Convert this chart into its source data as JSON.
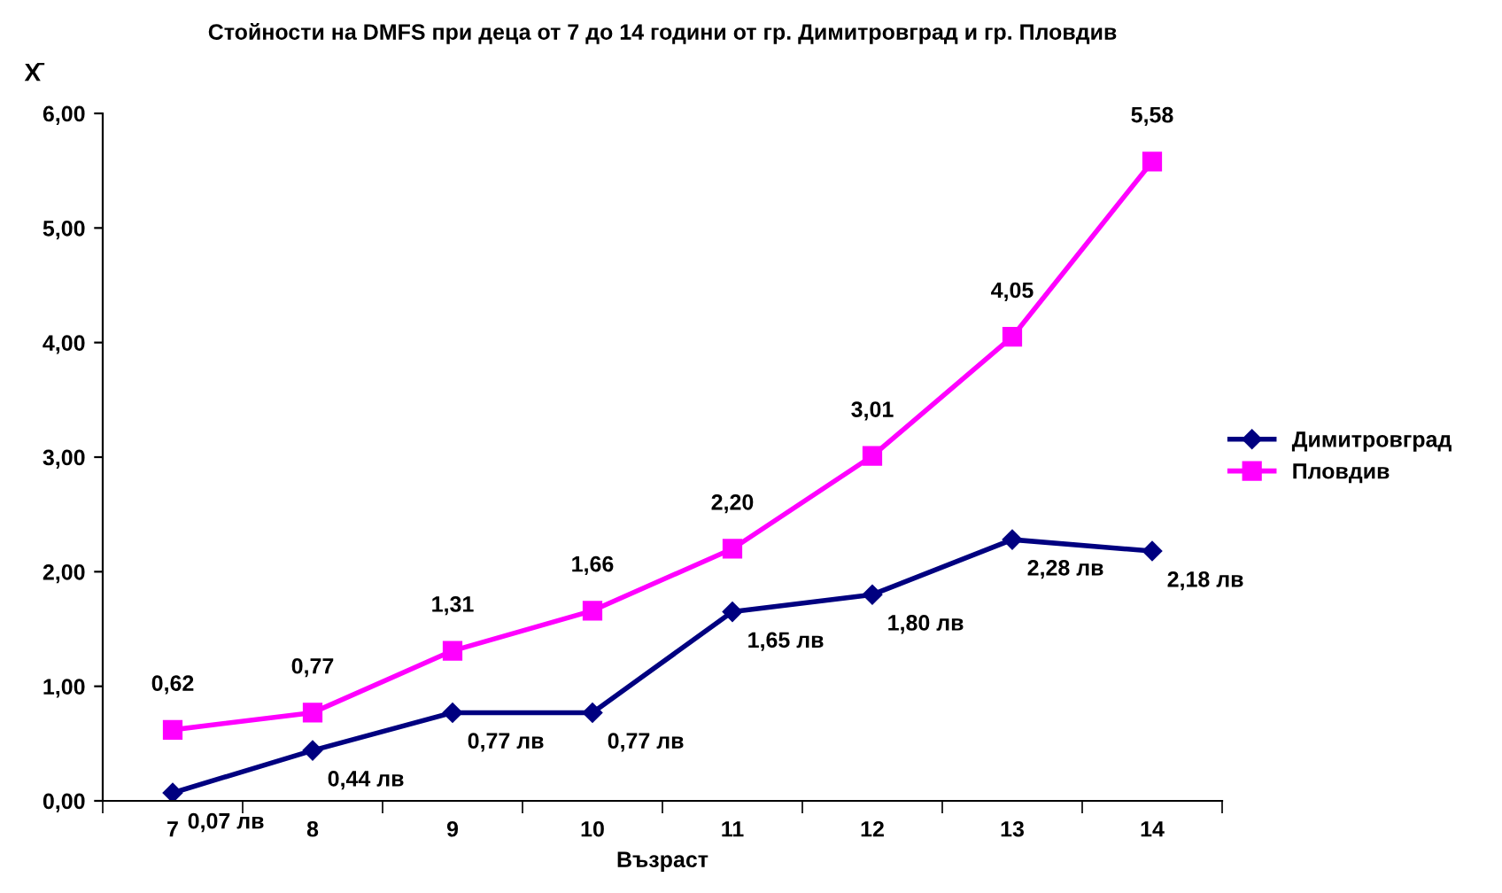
{
  "chart_data": {
    "type": "line",
    "title": "Стойности на DMFS при деца от 7 до 14 години от гр. Димитровград и гр. Пловдив",
    "xlabel": "Възраст",
    "ylabel": "X̄",
    "categories": [
      "7",
      "8",
      "9",
      "10",
      "11",
      "12",
      "13",
      "14"
    ],
    "series": [
      {
        "name": "Димитровград",
        "color": "#000080",
        "marker": "diamond",
        "values": [
          0.07,
          0.44,
          0.77,
          0.77,
          1.65,
          1.8,
          2.28,
          2.18
        ],
        "value_labels": [
          "0,07 лв",
          "0,44 лв",
          "0,77 лв",
          "0,77 лв",
          "1,65 лв",
          "1,80 лв",
          "2,28 лв",
          "2,18 лв"
        ]
      },
      {
        "name": "Пловдив",
        "color": "#ff00ff",
        "marker": "square",
        "values": [
          0.62,
          0.77,
          1.31,
          1.66,
          2.2,
          3.01,
          4.05,
          5.58
        ],
        "value_labels": [
          "0,62",
          "0,77",
          "1,31",
          "1,66",
          "2,20",
          "3,01",
          "4,05",
          "5,58"
        ]
      }
    ],
    "ylim": [
      0,
      6
    ],
    "yticks": [
      {
        "value": 0,
        "label": "0,00"
      },
      {
        "value": 1,
        "label": "1,00"
      },
      {
        "value": 2,
        "label": "2,00"
      },
      {
        "value": 3,
        "label": "3,00"
      },
      {
        "value": 4,
        "label": "4,00"
      },
      {
        "value": 5,
        "label": "5,00"
      },
      {
        "value": 6,
        "label": "6,00"
      }
    ],
    "grid": false,
    "legend": "right",
    "line_style": "solid"
  }
}
